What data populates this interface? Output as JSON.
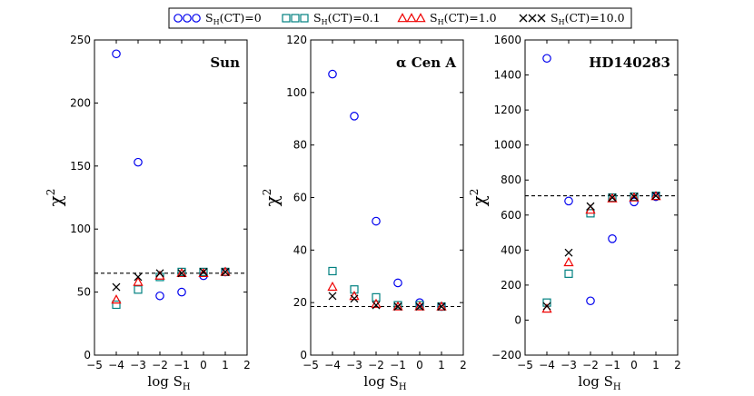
{
  "legend": [
    {
      "name": "S_H(CT)=0",
      "main": "S",
      "sub": "H",
      "rest": "(CT)=0",
      "marker": "circle",
      "color": "#0000ee"
    },
    {
      "name": "S_H(CT)=0.1",
      "main": "S",
      "sub": "H",
      "rest": "(CT)=0.1",
      "marker": "square",
      "color": "#008080"
    },
    {
      "name": "S_H(CT)=1.0",
      "main": "S",
      "sub": "H",
      "rest": "(CT)=1.0",
      "marker": "triangle",
      "color": "#ee0000"
    },
    {
      "name": "S_H(CT)=10.0",
      "main": "S",
      "sub": "H",
      "rest": "(CT)=10.0",
      "marker": "x",
      "color": "#000000"
    }
  ],
  "chart_data": [
    {
      "type": "scatter",
      "title": "Sun",
      "xlabel": {
        "main": "log S",
        "sub": "H"
      },
      "ylabel": {
        "main": "χ",
        "sup": "2"
      },
      "xlim": [
        -5,
        2
      ],
      "ylim": [
        0,
        250
      ],
      "xticks": [
        -5,
        -4,
        -3,
        -2,
        -1,
        0,
        1,
        2
      ],
      "xtick_labels": [
        "−5",
        "−4",
        "−3",
        "−2",
        "−1",
        "0",
        "1",
        "2"
      ],
      "yticks": [
        0,
        50,
        100,
        150,
        200,
        250
      ],
      "ytick_labels": [
        "0",
        "50",
        "100",
        "150",
        "200",
        "250"
      ],
      "hline": 65,
      "series": [
        {
          "name": "S_H(CT)=0",
          "x": [
            -4,
            -3,
            -2,
            -1,
            0,
            1
          ],
          "y": [
            239,
            153,
            47,
            50,
            63,
            66
          ]
        },
        {
          "name": "S_H(CT)=0.1",
          "x": [
            -4,
            -3,
            -2,
            -1,
            0,
            1
          ],
          "y": [
            40,
            52,
            62,
            66,
            66,
            66
          ]
        },
        {
          "name": "S_H(CT)=1.0",
          "x": [
            -4,
            -3,
            -2,
            -1,
            0,
            1
          ],
          "y": [
            44,
            58,
            63,
            65,
            65,
            66
          ]
        },
        {
          "name": "S_H(CT)=10.0",
          "x": [
            -4,
            -3,
            -2,
            -1,
            0,
            1
          ],
          "y": [
            54,
            62,
            65,
            65,
            66,
            66
          ]
        }
      ]
    },
    {
      "type": "scatter",
      "title": "α Cen A",
      "xlabel": {
        "main": "log S",
        "sub": "H"
      },
      "ylabel": {
        "main": "χ",
        "sup": "2"
      },
      "xlim": [
        -5,
        2
      ],
      "ylim": [
        0,
        120
      ],
      "xticks": [
        -5,
        -4,
        -3,
        -2,
        -1,
        0,
        1,
        2
      ],
      "xtick_labels": [
        "−5",
        "−4",
        "−3",
        "−2",
        "−1",
        "0",
        "1",
        "2"
      ],
      "yticks": [
        0,
        20,
        40,
        60,
        80,
        100,
        120
      ],
      "ytick_labels": [
        "0",
        "20",
        "40",
        "60",
        "80",
        "100",
        "120"
      ],
      "hline": 18.5,
      "series": [
        {
          "name": "S_H(CT)=0",
          "x": [
            -4,
            -3,
            -2,
            -1,
            0,
            1
          ],
          "y": [
            107,
            91,
            51,
            27.5,
            20,
            18.5
          ]
        },
        {
          "name": "S_H(CT)=0.1",
          "x": [
            -4,
            -3,
            -2,
            -1,
            0,
            1
          ],
          "y": [
            32,
            25,
            22,
            19,
            19,
            18.5
          ]
        },
        {
          "name": "S_H(CT)=1.0",
          "x": [
            -4,
            -3,
            -2,
            -1,
            0,
            1
          ],
          "y": [
            26,
            22.5,
            19.5,
            18.5,
            18.5,
            18.5
          ]
        },
        {
          "name": "S_H(CT)=10.0",
          "x": [
            -4,
            -3,
            -2,
            -1,
            0,
            1
          ],
          "y": [
            22.5,
            21.5,
            19,
            18.5,
            18.5,
            18.5
          ]
        }
      ]
    },
    {
      "type": "scatter",
      "title": "HD140283",
      "xlabel": {
        "main": "log S",
        "sub": "H"
      },
      "ylabel": {
        "main": "χ",
        "sup": "2"
      },
      "xlim": [
        -5,
        2
      ],
      "ylim": [
        -200,
        1600
      ],
      "xticks": [
        -5,
        -4,
        -3,
        -2,
        -1,
        0,
        1,
        2
      ],
      "xtick_labels": [
        "−5",
        "−4",
        "−3",
        "−2",
        "−1",
        "0",
        "1",
        "2"
      ],
      "yticks": [
        -200,
        0,
        200,
        400,
        600,
        800,
        1000,
        1200,
        1400,
        1600
      ],
      "ytick_labels": [
        "−200",
        "0",
        "200",
        "400",
        "600",
        "800",
        "1000",
        "1200",
        "1400",
        "1600"
      ],
      "hline": 710,
      "series": [
        {
          "name": "S_H(CT)=0",
          "x": [
            -4,
            -3,
            -2,
            -1,
            0,
            1
          ],
          "y": [
            1495,
            680,
            110,
            465,
            675,
            705
          ]
        },
        {
          "name": "S_H(CT)=0.1",
          "x": [
            -4,
            -3,
            -2,
            -1,
            0,
            1
          ],
          "y": [
            100,
            265,
            610,
            700,
            705,
            710
          ]
        },
        {
          "name": "S_H(CT)=1.0",
          "x": [
            -4,
            -3,
            -2,
            -1,
            0,
            1
          ],
          "y": [
            65,
            330,
            630,
            695,
            700,
            708
          ]
        },
        {
          "name": "S_H(CT)=10.0",
          "x": [
            -4,
            -3,
            -2,
            -1,
            0,
            1
          ],
          "y": [
            80,
            385,
            650,
            700,
            705,
            710
          ]
        }
      ]
    }
  ]
}
